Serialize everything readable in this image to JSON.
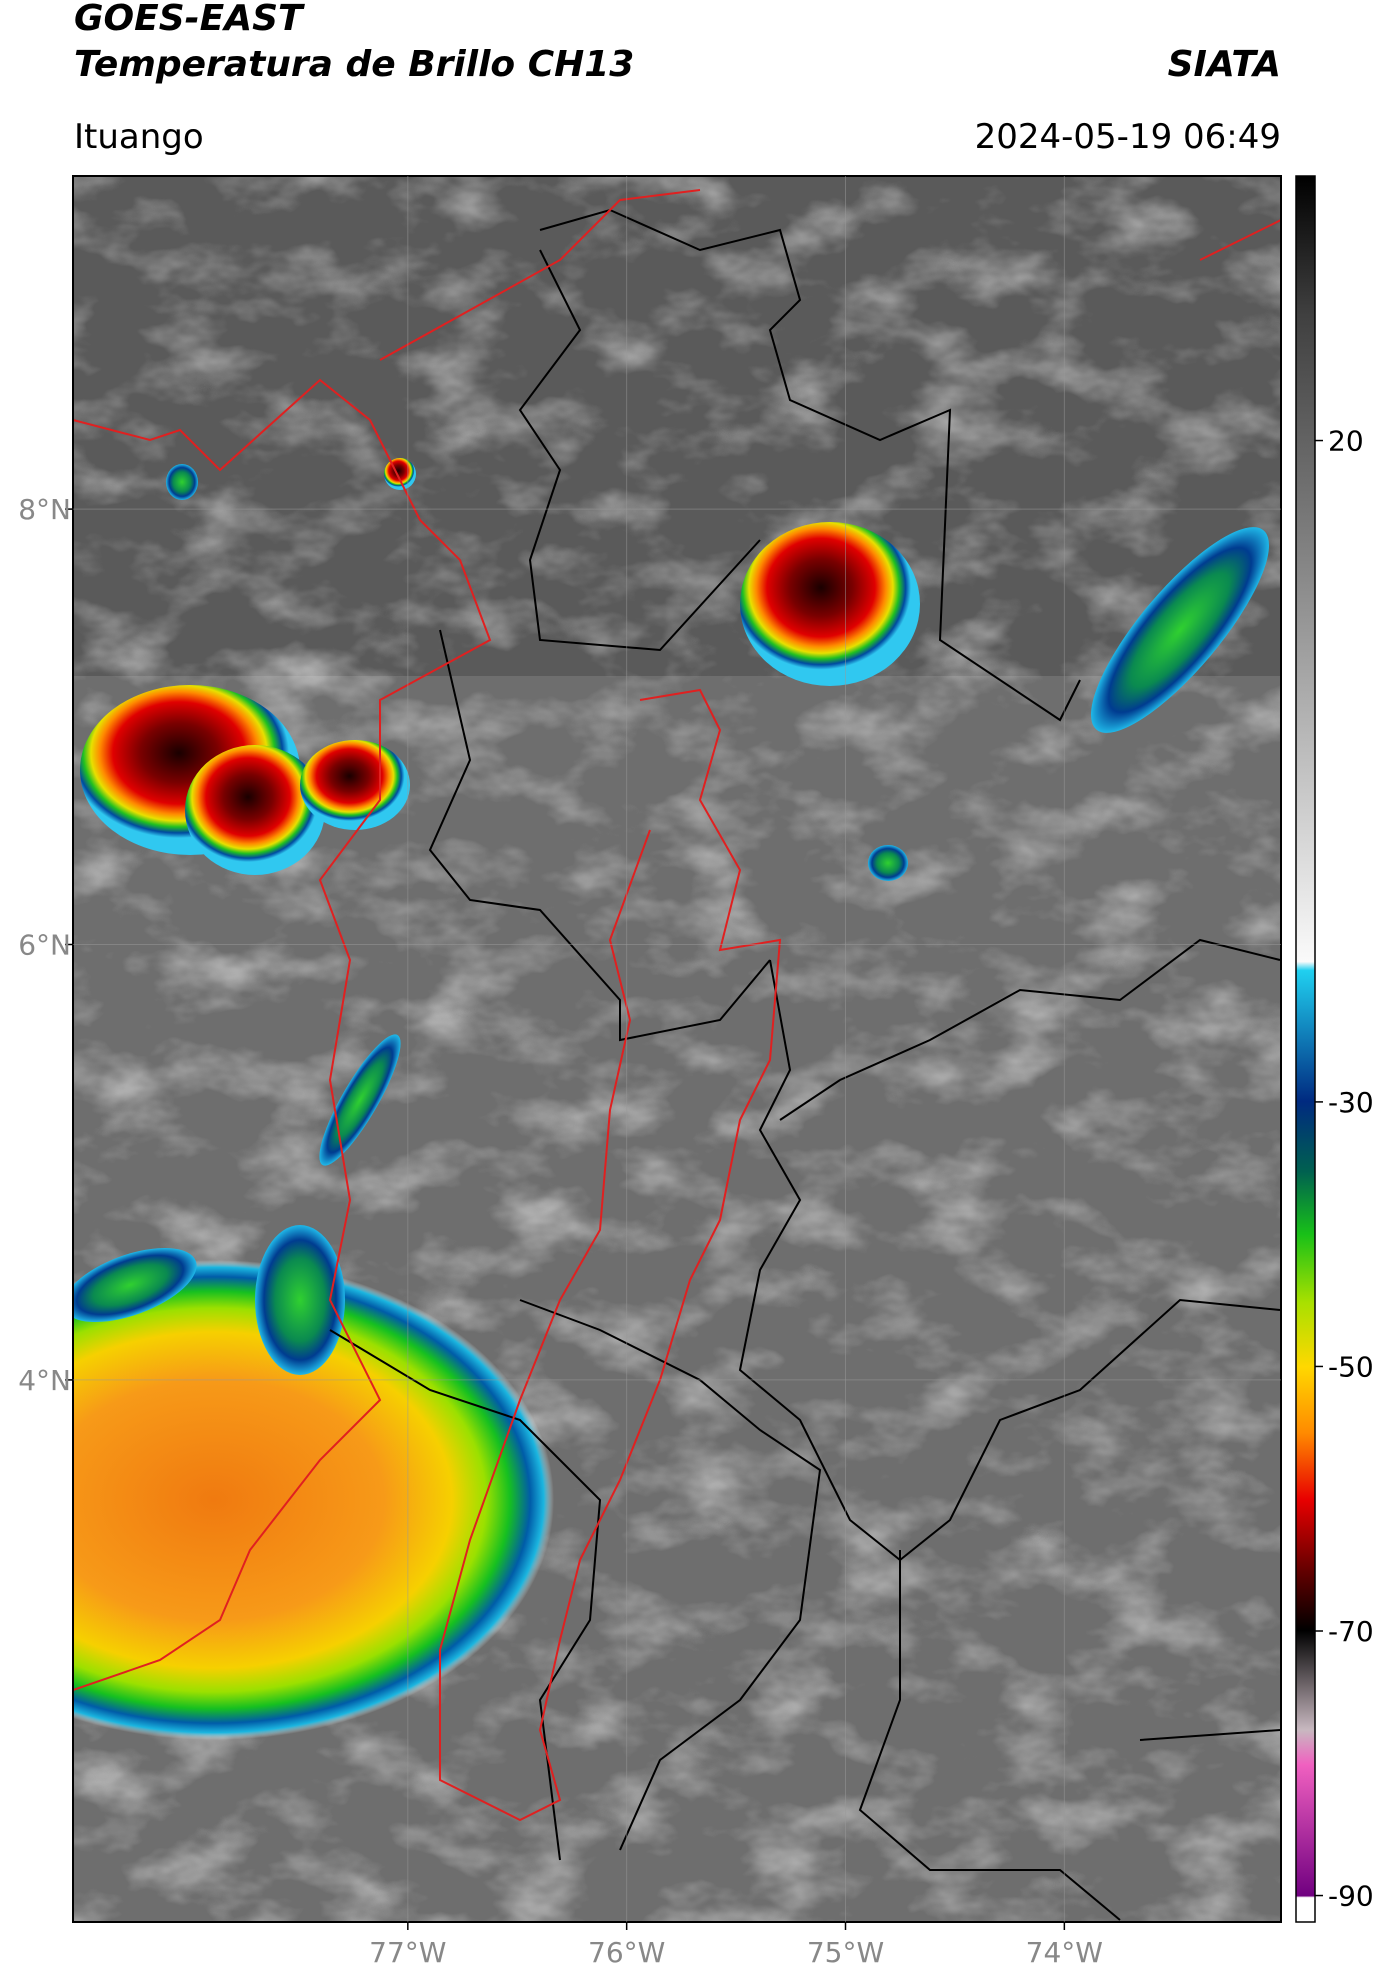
{
  "header": {
    "title": "GOES-EAST",
    "subtitle": "Temperatura de Brillo CH13",
    "source": "SIATA",
    "location": "Ituango",
    "datetime": "2024-05-19 06:49"
  },
  "map": {
    "xlim": [
      -78.53,
      -73.01
    ],
    "ylim": [
      1.51,
      9.53
    ],
    "xticks": [
      {
        "value": -77,
        "label": "77°W"
      },
      {
        "value": -76,
        "label": "76°W"
      },
      {
        "value": -75,
        "label": "75°W"
      },
      {
        "value": -74,
        "label": "74°W"
      }
    ],
    "yticks": [
      {
        "value": 8,
        "label": "8°N"
      },
      {
        "value": 6,
        "label": "6°N"
      },
      {
        "value": 4,
        "label": "4°N"
      }
    ],
    "grid": true
  },
  "colorbar": {
    "lim": [
      -92,
      40
    ],
    "ticks": [
      20,
      -30,
      -50,
      -70,
      -90
    ]
  }
}
